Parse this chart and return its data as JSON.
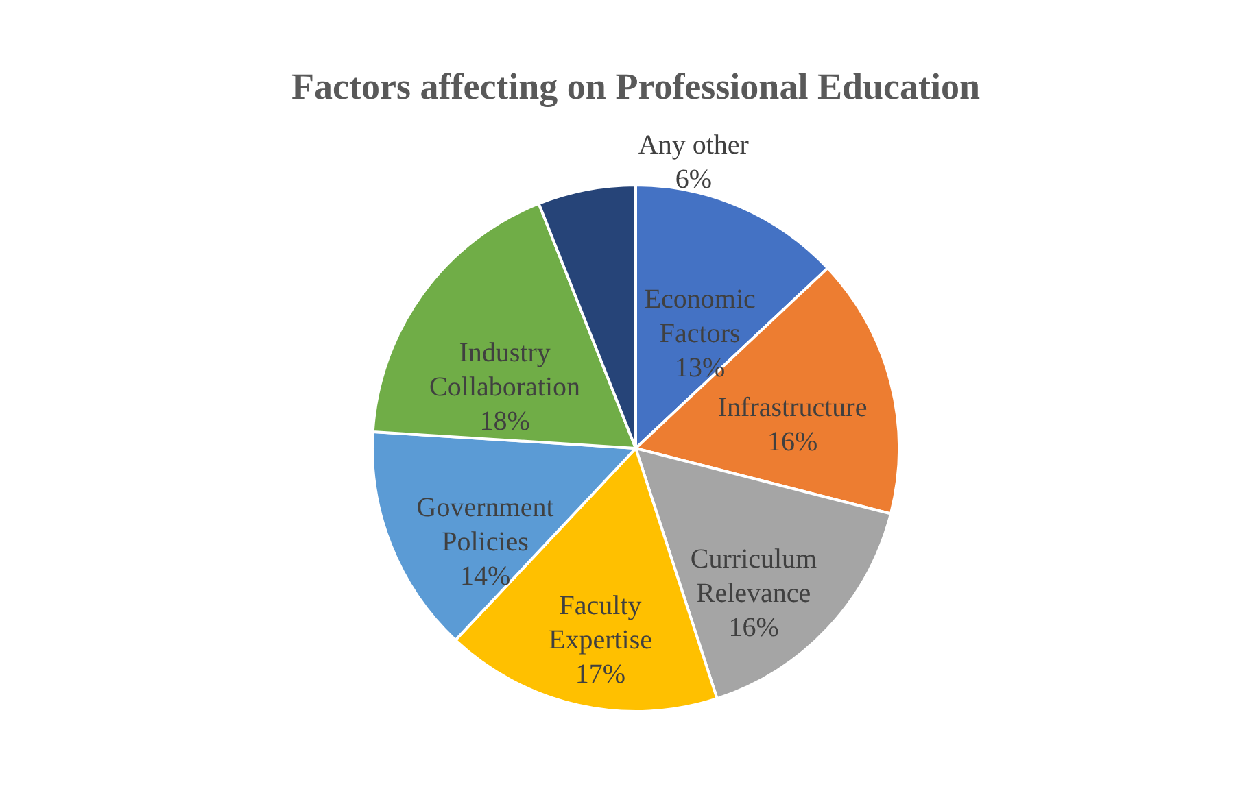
{
  "chart_data": {
    "type": "pie",
    "title": "Factors affecting on Professional Education",
    "categories": [
      "Economic Factors",
      "Infrastructure",
      "Curriculum Relevance",
      "Faculty Expertise",
      "Government Policies",
      "Industry Collaboration",
      "Any other"
    ],
    "values": [
      13,
      16,
      16,
      17,
      14,
      18,
      6
    ],
    "value_labels": [
      "13%",
      "16%",
      "16%",
      "17%",
      "14%",
      "18%",
      "6%"
    ],
    "colors": [
      "#4472c4",
      "#ed7d31",
      "#a5a5a5",
      "#ffc000",
      "#5b9bd5",
      "#70ad47",
      "#264478"
    ],
    "legend": false
  }
}
